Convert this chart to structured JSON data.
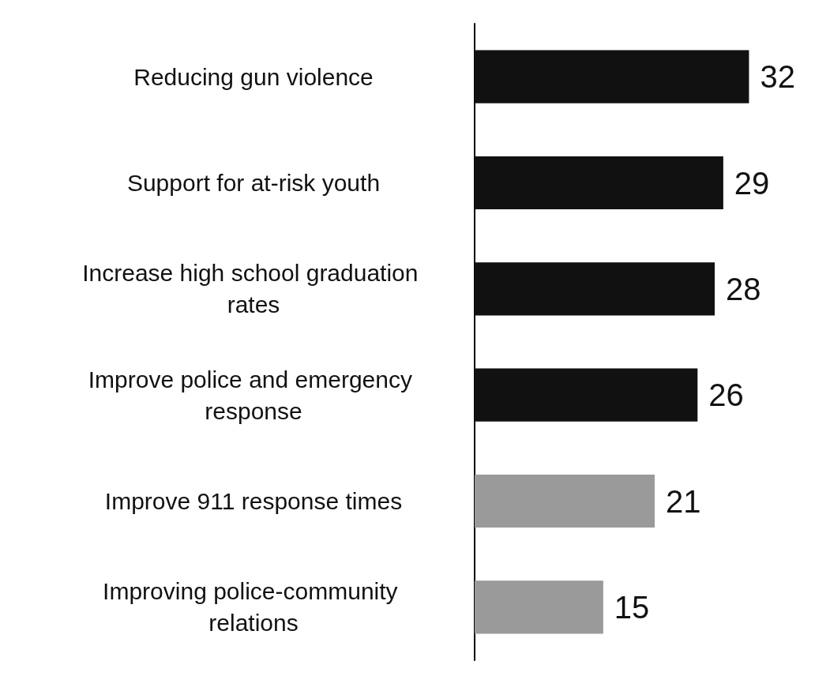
{
  "chart_data": {
    "type": "bar",
    "orientation": "horizontal",
    "categories": [
      "Reducing gun violence",
      "Support for at-risk youth",
      "Increase high school graduation rates",
      "Improve police and emergency response",
      "Improve 911 response times",
      "Improving police-community relations"
    ],
    "values": [
      32,
      29,
      28,
      26,
      21,
      15
    ],
    "colors": [
      "#111111",
      "#111111",
      "#111111",
      "#111111",
      "#9a9a9a",
      "#9a9a9a"
    ],
    "data_labels": true,
    "tick_labels": "y"
  }
}
